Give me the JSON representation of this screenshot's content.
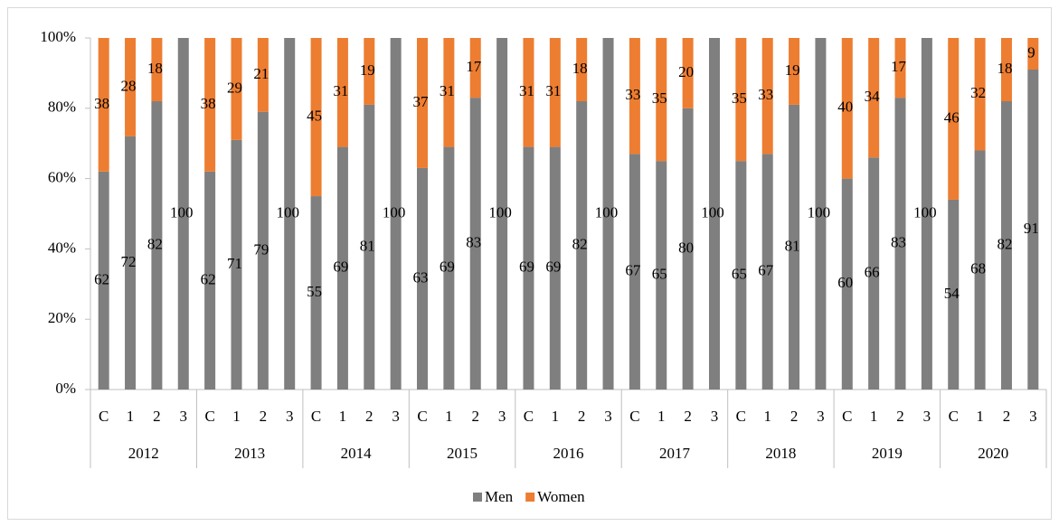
{
  "chart_data": {
    "type": "stacked_bar",
    "groups": [
      "2012",
      "2013",
      "2014",
      "2015",
      "2016",
      "2017",
      "2018",
      "2019",
      "2020"
    ],
    "categories": [
      "C",
      "1",
      "2",
      "3",
      "C",
      "1",
      "2",
      "3",
      "C",
      "1",
      "2",
      "3",
      "C",
      "1",
      "2",
      "3",
      "C",
      "1",
      "2",
      "3",
      "C",
      "1",
      "2",
      "3",
      "C",
      "1",
      "2",
      "3",
      "C",
      "1",
      "2",
      "3",
      "C",
      "1",
      "2",
      "3"
    ],
    "series": [
      {
        "name": "Men",
        "color": "#7f7f7f",
        "values": [
          62,
          72,
          82,
          100,
          62,
          71,
          79,
          100,
          55,
          69,
          81,
          100,
          63,
          69,
          83,
          100,
          69,
          69,
          82,
          100,
          67,
          65,
          80,
          100,
          65,
          67,
          81,
          100,
          60,
          66,
          83,
          100,
          54,
          68,
          82,
          91
        ]
      },
      {
        "name": "Women",
        "color": "#ed7d31",
        "values": [
          38,
          28,
          18,
          0,
          38,
          29,
          21,
          0,
          45,
          31,
          19,
          0,
          37,
          31,
          17,
          0,
          31,
          31,
          18,
          0,
          33,
          35,
          20,
          0,
          35,
          33,
          19,
          0,
          40,
          34,
          17,
          0,
          46,
          32,
          18,
          9
        ]
      }
    ],
    "ylim": [
      0,
      100
    ],
    "yticks": [
      {
        "value": 0,
        "label": "0%"
      },
      {
        "value": 20,
        "label": "20%"
      },
      {
        "value": 40,
        "label": "40%"
      },
      {
        "value": 60,
        "label": "60%"
      },
      {
        "value": 80,
        "label": "80%"
      },
      {
        "value": 100,
        "label": "100%"
      }
    ],
    "grid": false,
    "legend": "bottom"
  }
}
